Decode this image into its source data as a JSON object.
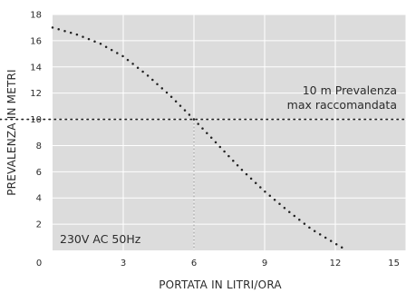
{
  "chart_data": {
    "type": "line",
    "xlabel": "PORTATA IN LITRI/ORA",
    "ylabel": "PREVALENZA IN METRI",
    "xlim": [
      0,
      15
    ],
    "ylim": [
      0,
      18
    ],
    "x_ticks": [
      0,
      3,
      6,
      9,
      12,
      15
    ],
    "y_ticks": [
      2,
      4,
      6,
      8,
      10,
      12,
      14,
      16,
      18
    ],
    "grid": true,
    "background_color": "#dcdcdc",
    "grid_color": "#ffffff",
    "curve_color": "#222222",
    "series": [
      {
        "x": [
          0,
          1,
          2,
          3,
          4,
          5,
          6,
          7,
          8,
          9,
          10,
          11,
          12.3
        ],
        "y": [
          17.0,
          16.5,
          15.8,
          14.8,
          13.4,
          11.8,
          10.0,
          8.1,
          6.2,
          4.5,
          3.0,
          1.6,
          0.2
        ]
      }
    ],
    "reference_line": {
      "y": 10,
      "label_line1": "10 m Prevalenza",
      "label_line2": "max raccomandata"
    },
    "operating_point": {
      "x": 6,
      "y": 10
    },
    "annotation": "230V AC 50Hz"
  }
}
